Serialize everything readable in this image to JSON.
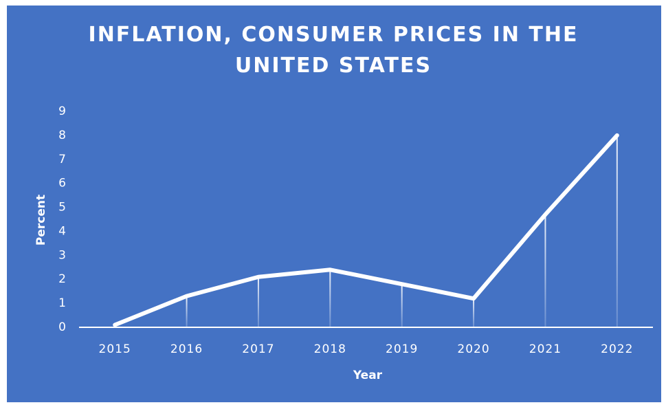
{
  "chart_data": {
    "type": "line",
    "title": "INFLATION, CONSUMER PRICES IN THE UNITED STATES",
    "x_label": "Year",
    "y_label": "Percent",
    "categories": [
      "2015",
      "2016",
      "2017",
      "2018",
      "2019",
      "2020",
      "2021",
      "2022"
    ],
    "values": [
      0.1,
      1.3,
      2.1,
      2.4,
      1.8,
      1.2,
      4.7,
      8.0
    ],
    "color": "#ffffff",
    "background": "#4472c4",
    "ylim": [
      0,
      9
    ],
    "yticks": [
      0,
      1,
      2,
      3,
      4,
      5,
      6,
      7,
      8,
      9
    ],
    "grid": false,
    "drop_lines": true
  }
}
